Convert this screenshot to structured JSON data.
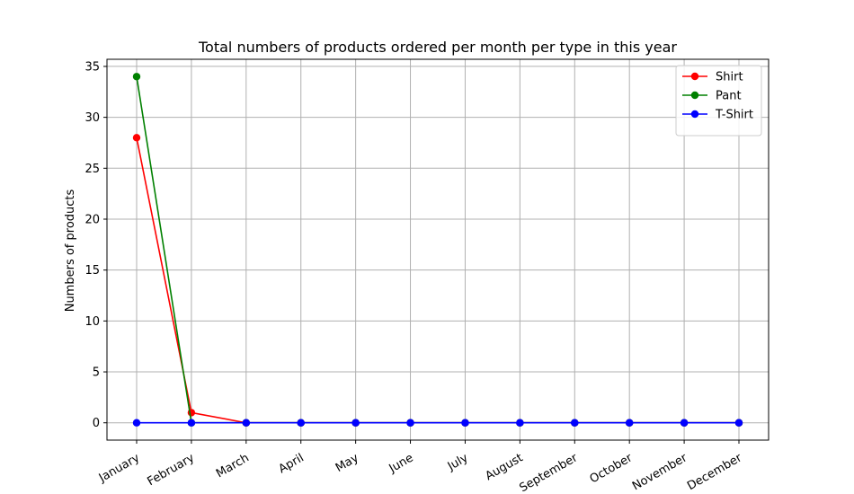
{
  "chart_data": {
    "type": "line",
    "title": "Total numbers of products ordered per month per type in this year",
    "xlabel": "",
    "ylabel": "Numbers of products",
    "categories": [
      "January",
      "February",
      "March",
      "April",
      "May",
      "June",
      "July",
      "August",
      "September",
      "October",
      "November",
      "December"
    ],
    "ylim": [
      -1.7,
      35.7
    ],
    "yticks": [
      0,
      5,
      10,
      15,
      20,
      25,
      30,
      35
    ],
    "grid": true,
    "legend_position": "top-right",
    "series": [
      {
        "name": "Shirt",
        "color": "#ff0000",
        "values": [
          28,
          1,
          0,
          0,
          0,
          0,
          0,
          0,
          0,
          0,
          0,
          0
        ]
      },
      {
        "name": "Pant",
        "color": "#008000",
        "values": [
          34,
          0,
          0,
          0,
          0,
          0,
          0,
          0,
          0,
          0,
          0,
          0
        ]
      },
      {
        "name": "T-Shirt",
        "color": "#0000ff",
        "values": [
          0,
          0,
          0,
          0,
          0,
          0,
          0,
          0,
          0,
          0,
          0,
          0
        ]
      }
    ]
  }
}
